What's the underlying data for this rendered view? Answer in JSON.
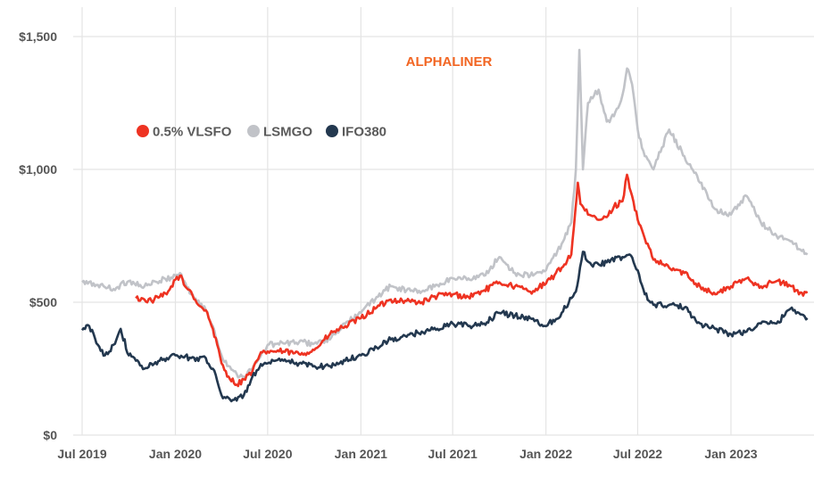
{
  "chart_data": {
    "type": "line",
    "watermark": "ALPHALINER",
    "title": "",
    "xlabel": "",
    "ylabel": "",
    "y_currency_prefix": "$",
    "ylim": [
      0,
      1500
    ],
    "y_ticks": [
      0,
      500,
      1000,
      1500
    ],
    "y_tick_labels": [
      "$0",
      "$500",
      "$1,000",
      "$1,500"
    ],
    "x_ticks": [
      "2019-07",
      "2020-01",
      "2020-07",
      "2021-01",
      "2021-07",
      "2022-01",
      "2022-07",
      "2023-01"
    ],
    "x_tick_labels": [
      "Jul 2019",
      "Jan 2020",
      "Jul 2020",
      "Jan 2021",
      "Jul 2021",
      "Jan 2022",
      "Jul 2022",
      "Jan 2023"
    ],
    "grid": "horizontal and vertical",
    "legend_position": "upper-left",
    "watermark_color": "#f26522",
    "series": [
      {
        "name": "0.5% VLSFO",
        "color": "#ee3322",
        "x": [
          "2019-10-15",
          "2019-11-01",
          "2019-11-15",
          "2019-12-01",
          "2019-12-15",
          "2020-01-01",
          "2020-01-10",
          "2020-01-20",
          "2020-02-01",
          "2020-02-15",
          "2020-03-01",
          "2020-03-15",
          "2020-04-01",
          "2020-04-15",
          "2020-05-01",
          "2020-05-15",
          "2020-06-01",
          "2020-06-15",
          "2020-07-01",
          "2020-08-01",
          "2020-09-01",
          "2020-10-01",
          "2020-11-01",
          "2020-12-01",
          "2021-01-01",
          "2021-02-01",
          "2021-03-01",
          "2021-04-01",
          "2021-05-01",
          "2021-06-01",
          "2021-07-01",
          "2021-08-01",
          "2021-09-01",
          "2021-10-01",
          "2021-11-01",
          "2021-12-01",
          "2022-01-01",
          "2022-02-01",
          "2022-02-20",
          "2022-03-05",
          "2022-03-10",
          "2022-03-25",
          "2022-04-15",
          "2022-05-01",
          "2022-05-15",
          "2022-06-01",
          "2022-06-10",
          "2022-06-20",
          "2022-07-01",
          "2022-07-15",
          "2022-08-01",
          "2022-09-01",
          "2022-10-01",
          "2022-11-01",
          "2022-12-01",
          "2023-01-01",
          "2023-02-01",
          "2023-03-01",
          "2023-04-01",
          "2023-05-01",
          "2023-05-15",
          "2023-06-01"
        ],
        "values": [
          515,
          510,
          505,
          520,
          530,
          585,
          600,
          560,
          540,
          490,
          470,
          400,
          270,
          220,
          190,
          210,
          240,
          300,
          315,
          315,
          305,
          320,
          380,
          410,
          440,
          480,
          510,
          505,
          500,
          525,
          530,
          520,
          545,
          575,
          560,
          540,
          570,
          630,
          680,
          950,
          870,
          830,
          810,
          820,
          860,
          880,
          980,
          900,
          810,
          740,
          660,
          630,
          610,
          560,
          530,
          560,
          590,
          560,
          580,
          560,
          530,
          540
        ]
      },
      {
        "name": "LSMGO",
        "color": "#c1c3c8",
        "x": [
          "2019-07-01",
          "2019-08-01",
          "2019-09-01",
          "2019-10-01",
          "2019-11-01",
          "2019-12-01",
          "2020-01-01",
          "2020-01-10",
          "2020-02-01",
          "2020-03-01",
          "2020-03-15",
          "2020-04-01",
          "2020-04-15",
          "2020-05-01",
          "2020-05-15",
          "2020-06-01",
          "2020-06-15",
          "2020-07-01",
          "2020-08-01",
          "2020-09-01",
          "2020-10-01",
          "2020-11-01",
          "2020-12-01",
          "2021-01-01",
          "2021-02-01",
          "2021-03-01",
          "2021-04-01",
          "2021-05-01",
          "2021-06-01",
          "2021-07-01",
          "2021-08-01",
          "2021-09-01",
          "2021-10-01",
          "2021-11-01",
          "2021-12-01",
          "2022-01-01",
          "2022-02-01",
          "2022-02-20",
          "2022-03-01",
          "2022-03-08",
          "2022-03-15",
          "2022-03-25",
          "2022-04-15",
          "2022-05-01",
          "2022-05-15",
          "2022-06-01",
          "2022-06-10",
          "2022-06-20",
          "2022-07-01",
          "2022-07-15",
          "2022-08-01",
          "2022-09-01",
          "2022-10-01",
          "2022-11-01",
          "2022-12-01",
          "2023-01-01",
          "2023-02-01",
          "2023-03-01",
          "2023-04-01",
          "2023-05-01",
          "2023-05-15",
          "2023-06-01"
        ],
        "values": [
          575,
          565,
          550,
          580,
          560,
          580,
          600,
          610,
          530,
          470,
          410,
          300,
          260,
          230,
          220,
          250,
          290,
          340,
          345,
          350,
          345,
          360,
          420,
          460,
          520,
          560,
          545,
          540,
          565,
          590,
          590,
          600,
          670,
          610,
          600,
          620,
          720,
          800,
          1000,
          1450,
          1000,
          1250,
          1300,
          1180,
          1200,
          1280,
          1380,
          1320,
          1150,
          1050,
          1000,
          1150,
          1050,
          950,
          850,
          830,
          900,
          800,
          750,
          730,
          700,
          680
        ]
      },
      {
        "name": "IFO380",
        "color": "#23384f",
        "x": [
          "2019-07-01",
          "2019-07-15",
          "2019-08-01",
          "2019-08-15",
          "2019-09-01",
          "2019-09-15",
          "2019-10-01",
          "2019-10-15",
          "2019-11-01",
          "2019-12-01",
          "2019-12-15",
          "2020-01-01",
          "2020-02-01",
          "2020-03-01",
          "2020-03-15",
          "2020-04-01",
          "2020-04-15",
          "2020-05-01",
          "2020-05-15",
          "2020-06-01",
          "2020-06-15",
          "2020-07-01",
          "2020-08-01",
          "2020-09-01",
          "2020-10-01",
          "2020-11-01",
          "2020-12-01",
          "2021-01-01",
          "2021-02-01",
          "2021-03-01",
          "2021-04-01",
          "2021-05-01",
          "2021-06-01",
          "2021-07-01",
          "2021-08-01",
          "2021-09-01",
          "2021-10-01",
          "2021-11-01",
          "2021-12-01",
          "2022-01-01",
          "2022-02-01",
          "2022-03-01",
          "2022-03-15",
          "2022-04-01",
          "2022-05-01",
          "2022-06-01",
          "2022-06-15",
          "2022-07-01",
          "2022-07-15",
          "2022-08-01",
          "2022-09-01",
          "2022-10-01",
          "2022-11-01",
          "2022-12-01",
          "2023-01-01",
          "2023-02-01",
          "2023-03-01",
          "2023-04-01",
          "2023-05-01",
          "2023-05-15",
          "2023-06-01"
        ],
        "values": [
          395,
          410,
          340,
          300,
          340,
          400,
          300,
          280,
          250,
          280,
          290,
          300,
          290,
          290,
          250,
          150,
          140,
          130,
          150,
          220,
          255,
          270,
          280,
          270,
          260,
          260,
          280,
          300,
          330,
          360,
          370,
          390,
          400,
          420,
          410,
          420,
          460,
          450,
          440,
          410,
          460,
          540,
          690,
          640,
          650,
          670,
          680,
          620,
          530,
          490,
          490,
          480,
          420,
          400,
          380,
          390,
          420,
          420,
          480,
          460,
          440
        ]
      }
    ]
  }
}
